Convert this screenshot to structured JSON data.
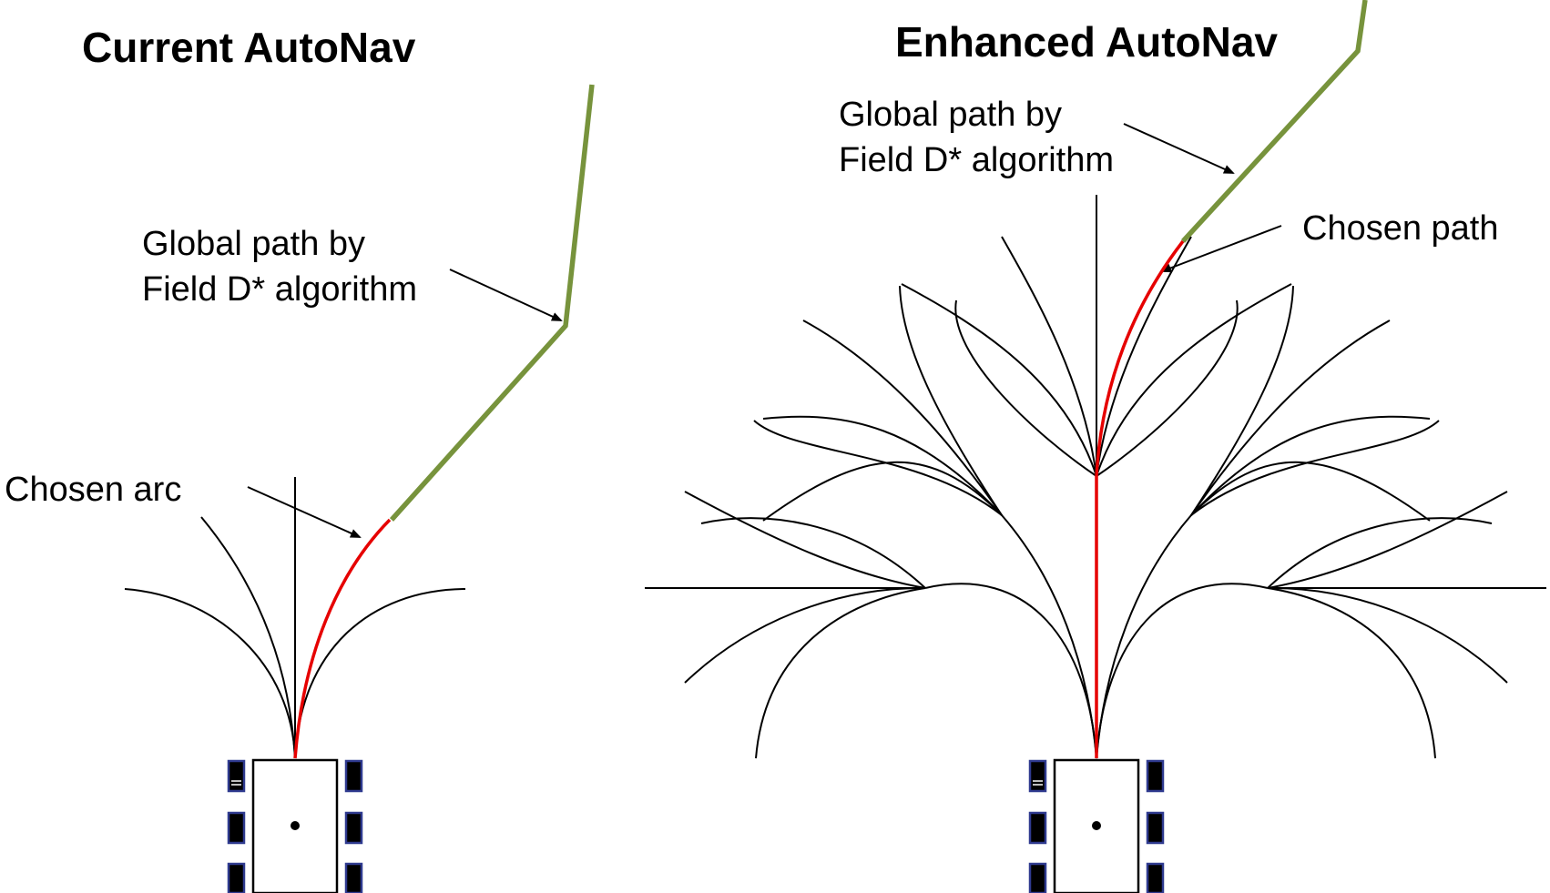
{
  "left_panel": {
    "title": "Current AutoNav",
    "global_path_label": [
      "Global path by",
      "Field D* algorithm"
    ],
    "chosen_label": "Chosen arc"
  },
  "right_panel": {
    "title": "Enhanced AutoNav",
    "global_path_label": [
      "Global path by",
      "Field D* algorithm"
    ],
    "chosen_label": "Chosen path"
  },
  "colors": {
    "global_path": "#77933c",
    "chosen": "#e60000",
    "candidate_arcs": "#000000",
    "wheel_outline": "#2f3a8f"
  }
}
